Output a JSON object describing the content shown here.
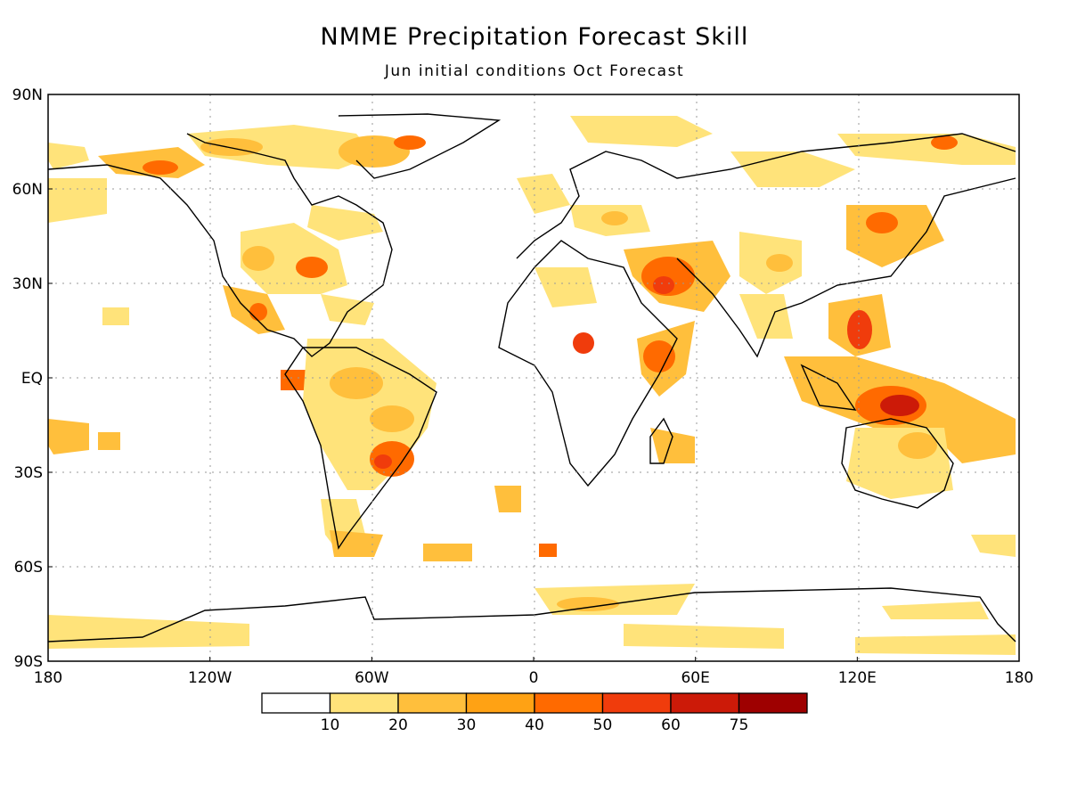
{
  "title": "NMME Precipitation Forecast Skill",
  "subtitle": "Jun initial conditions  Oct Forecast",
  "lat_ticks": [
    "90N",
    "60N",
    "30N",
    "EQ",
    "30S",
    "60S",
    "90S"
  ],
  "lon_ticks": [
    "180",
    "120W",
    "60W",
    "0",
    "60E",
    "120E",
    "180"
  ],
  "colorbar": {
    "labels": [
      "10",
      "20",
      "30",
      "40",
      "50",
      "60",
      "75"
    ],
    "colors": [
      "#ffffff",
      "#ffe37a",
      "#ffbf3c",
      "#ffa214",
      "#ff6a00",
      "#f03c0c",
      "#cc1a08",
      "#9e0000"
    ]
  },
  "skill_colors": {
    "low": "#ffe37a",
    "mid": "#ffbf3c",
    "mid2": "#ffa214",
    "high": "#ff6a00",
    "higher": "#f03c0c",
    "top": "#cc1a08"
  }
}
